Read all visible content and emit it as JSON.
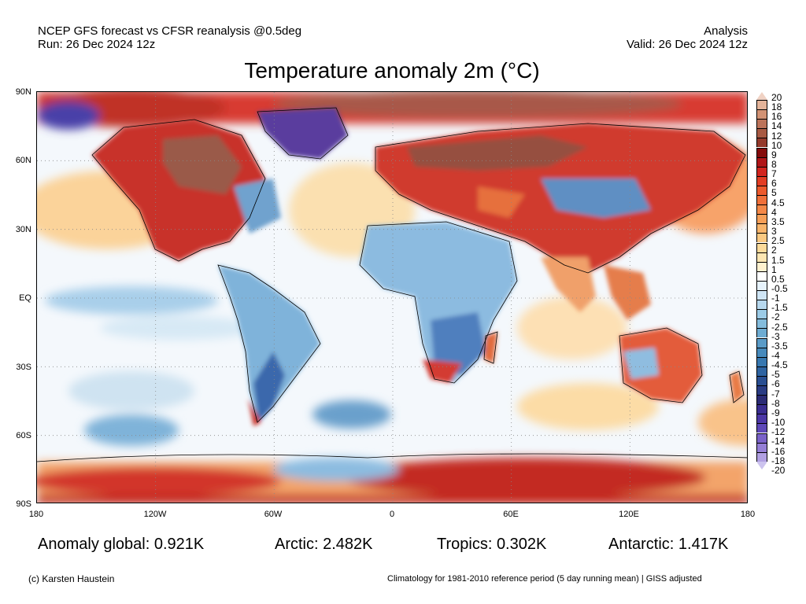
{
  "header": {
    "line1_left": "NCEP GFS forecast vs CFSR reanalysis @0.5deg",
    "line2_left": "Run: 26 Dec 2024 12z",
    "line1_right": "Analysis",
    "line2_right": "Valid: 26 Dec 2024 12z"
  },
  "map": {
    "title": "Temperature anomaly 2m (°C)",
    "lat_ticks": [
      "90N",
      "60N",
      "30N",
      "EQ",
      "30S",
      "60S",
      "90S"
    ],
    "lon_ticks": [
      "180",
      "120W",
      "60W",
      "0",
      "60E",
      "120E",
      "180"
    ],
    "colorbar_labels": [
      "20",
      "18",
      "16",
      "14",
      "12",
      "10",
      "9",
      "8",
      "7",
      "6",
      "5",
      "4.5",
      "4",
      "3.5",
      "3",
      "2.5",
      "2",
      "1.5",
      "1",
      "0.5",
      "-0.5",
      "-1",
      "-1.5",
      "-2",
      "-2.5",
      "-3",
      "-3.5",
      "-4",
      "-4.5",
      "-5",
      "-6",
      "-7",
      "-8",
      "-9",
      "-10",
      "-12",
      "-14",
      "-16",
      "-18",
      "-20"
    ],
    "colorbar_colors": [
      "#f0d2c4",
      "#e4b49a",
      "#d29274",
      "#bc735a",
      "#a85a43",
      "#943a2c",
      "#850b0b",
      "#b01518",
      "#d2251f",
      "#e23d24",
      "#ec5a2d",
      "#f0703a",
      "#f48848",
      "#f69f58",
      "#f8b56c",
      "#fac982",
      "#fcda9a",
      "#fde6b2",
      "#fff1cf",
      "#ffffff",
      "#e6f2fb",
      "#cfe5f5",
      "#b7d8ee",
      "#9ccbe6",
      "#84bcdc",
      "#6eacd2",
      "#5a9bc7",
      "#478abc",
      "#3878b0",
      "#2f64a2",
      "#2a4f92",
      "#2a3c84",
      "#2b2b75",
      "#3a2d90",
      "#4c37a6",
      "#5e48b8",
      "#7a62c8",
      "#957fd6",
      "#b1a0e2",
      "#ccc3ee"
    ],
    "land_color": "#d8343a",
    "ocean_color": "#f2f6fb",
    "grid": "dotted"
  },
  "stats": {
    "global": "Anomaly global: 0.921K",
    "arctic": "Arctic: 2.482K",
    "tropics": "Tropics: 0.302K",
    "antarctic": "Antarctic: 1.417K"
  },
  "footer": {
    "credit": "(c) Karsten Haustein",
    "climatology": "Climatology for 1981-2010 reference period (5 day running mean) | GISS adjusted"
  }
}
